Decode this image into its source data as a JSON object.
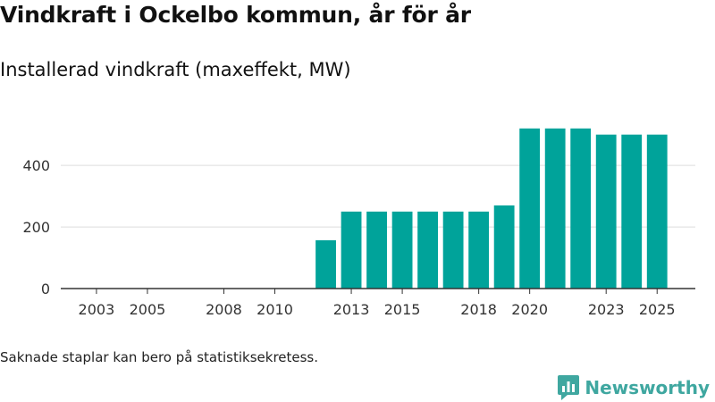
{
  "title": "Vindkraft i Ockelbo kommun, år för år",
  "subtitle": "Installerad vindkraft (maxeffekt, MW)",
  "footnote": "Saknade staplar kan bero på statistiksekretess.",
  "brand": {
    "name": "Newsworthy",
    "icon": "newsworthy-logo-icon",
    "color": "#3fa7a0"
  },
  "colors": {
    "bar": "#00a39a",
    "grid": "#dddddd",
    "axis": "#333333",
    "text": "#333333"
  },
  "chart_data": {
    "type": "bar",
    "title": "Vindkraft i Ockelbo kommun, år för år",
    "subtitle": "Installerad vindkraft (maxeffekt, MW)",
    "xlabel": "",
    "ylabel": "",
    "ylim": [
      0,
      560
    ],
    "x_range": [
      2001.6,
      2026.5
    ],
    "yticks": [
      0,
      200,
      400
    ],
    "xticks": [
      2003,
      2005,
      2008,
      2010,
      2013,
      2015,
      2018,
      2020,
      2023,
      2025
    ],
    "grid": true,
    "categories": [
      2012,
      2013,
      2014,
      2015,
      2016,
      2017,
      2018,
      2019,
      2020,
      2021,
      2022,
      2023,
      2024,
      2025
    ],
    "values": [
      157,
      250,
      250,
      250,
      250,
      250,
      250,
      270,
      520,
      520,
      520,
      500,
      500,
      500
    ]
  }
}
